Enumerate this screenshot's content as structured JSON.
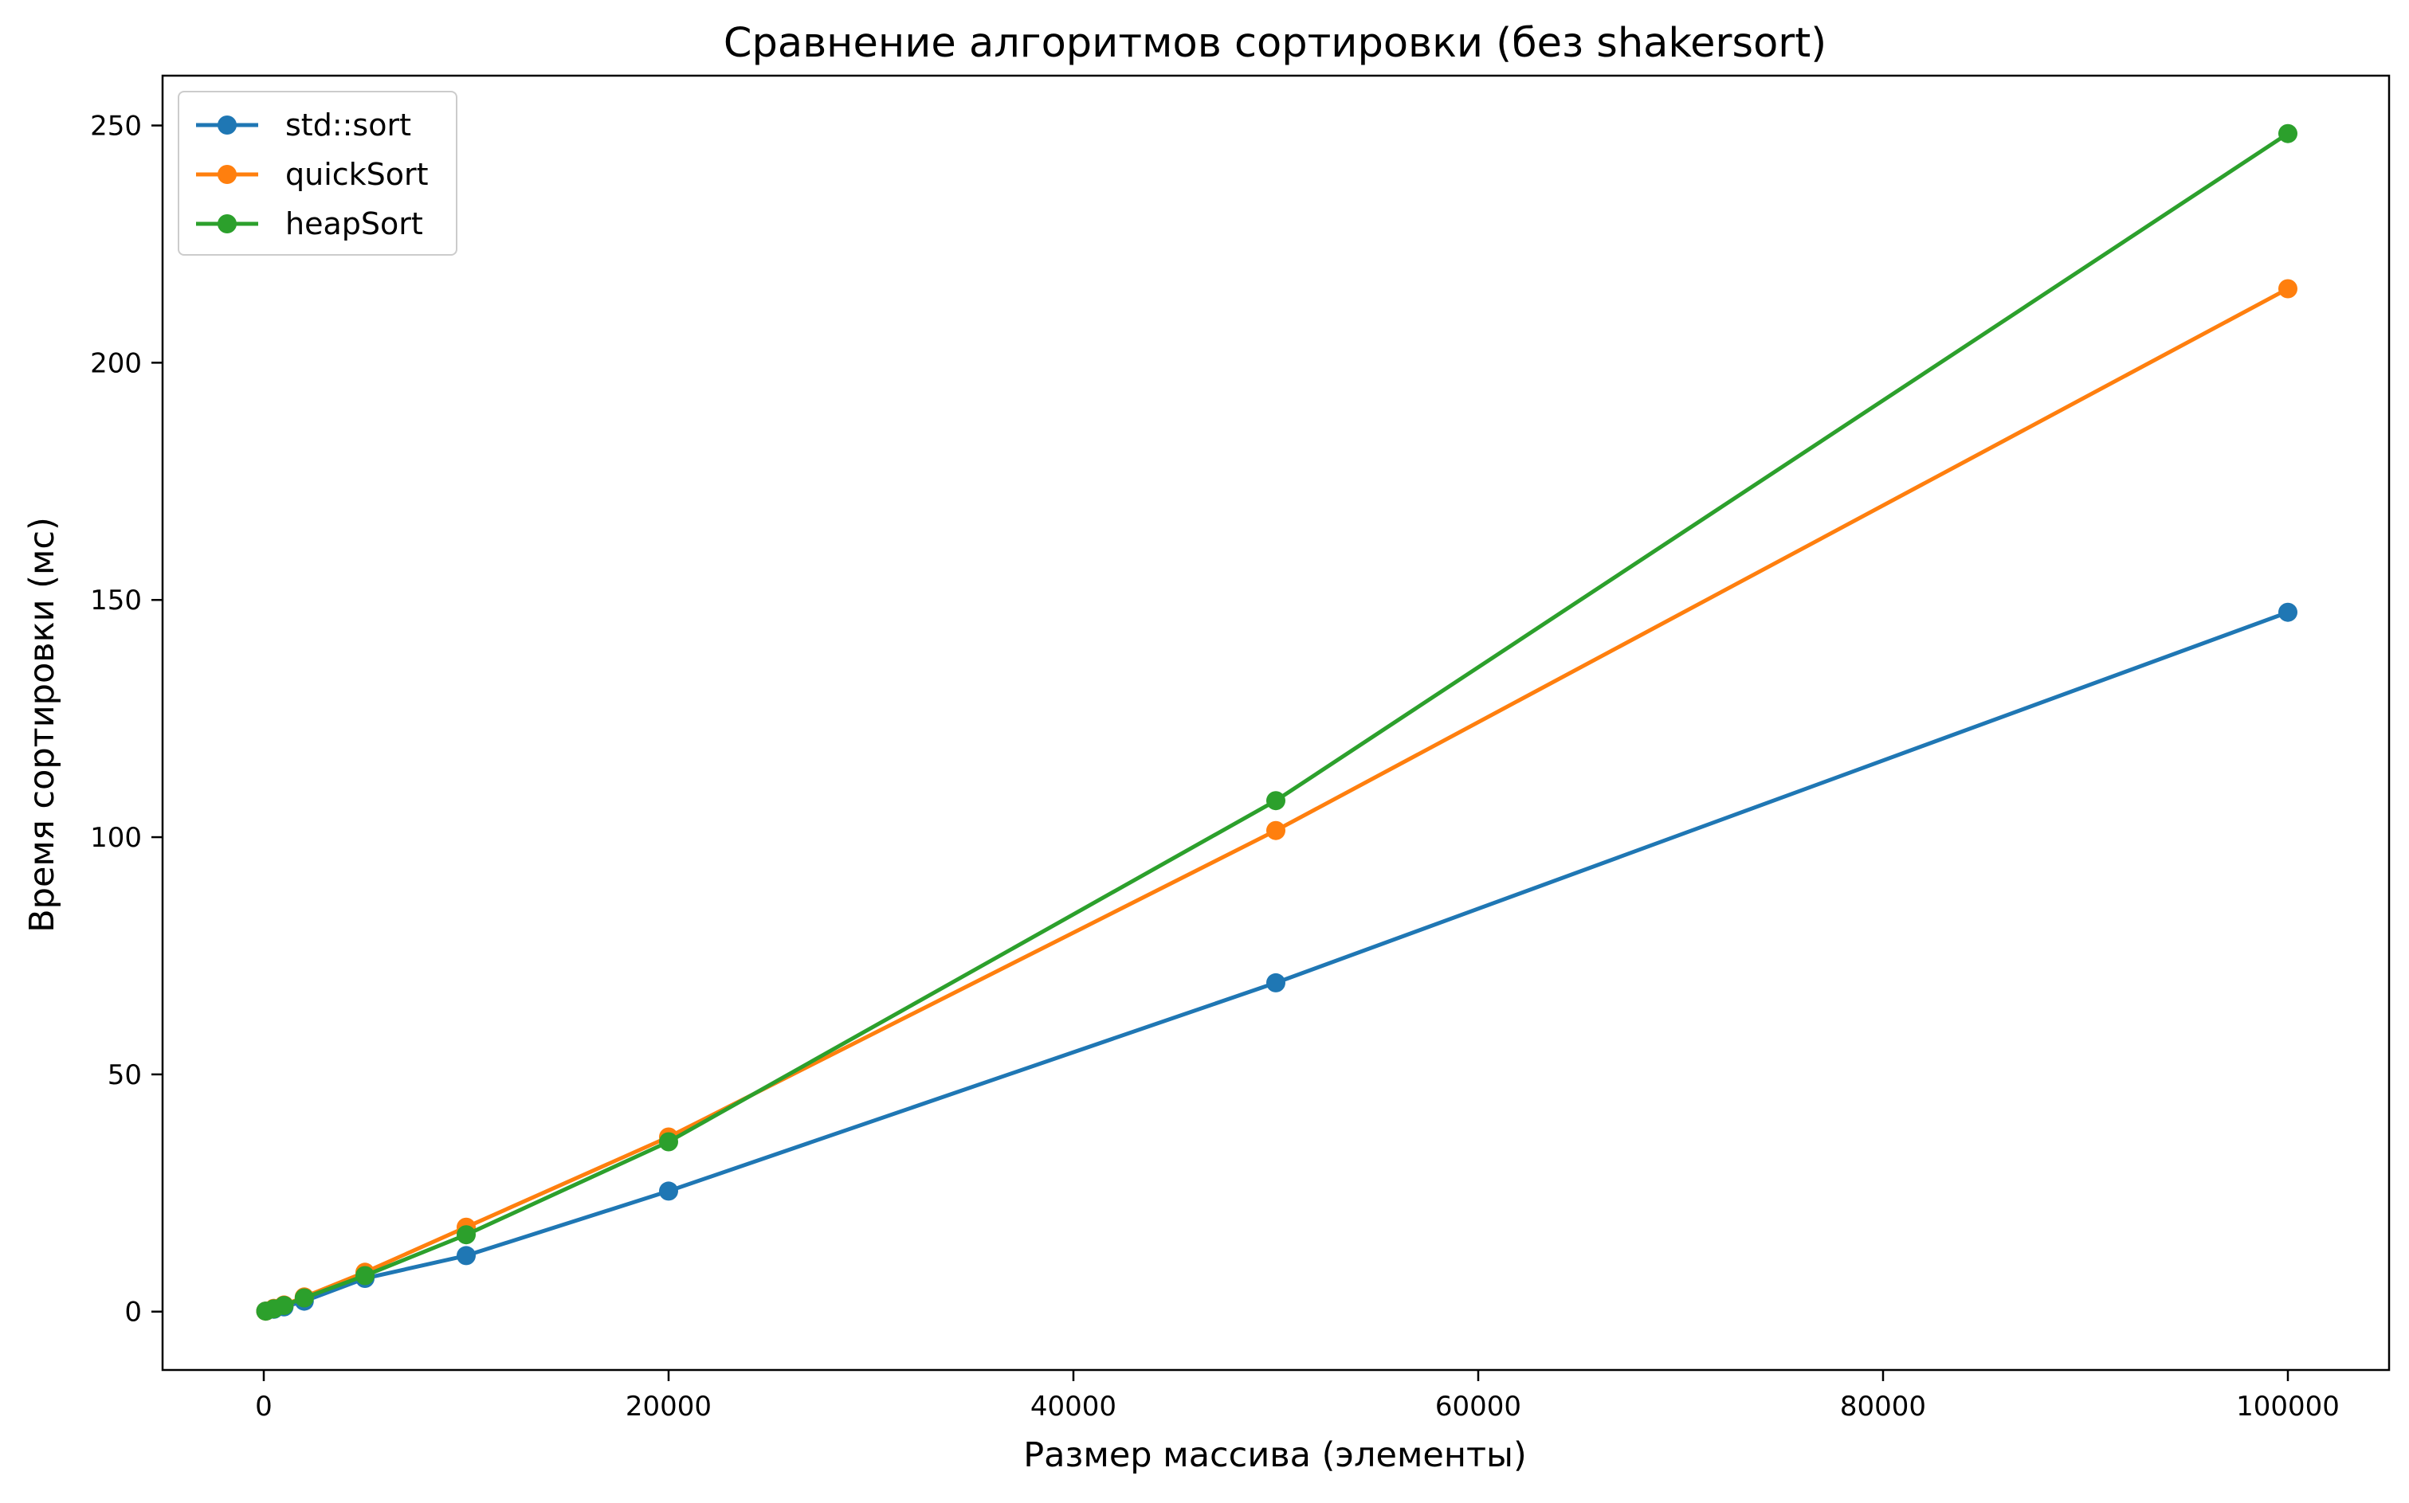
{
  "chart_data": {
    "type": "line",
    "title": "Сравнение алгоритмов сортировки (без shakersort)",
    "xlabel": "Размер массива (элементы)",
    "ylabel": "Время сортировки (мс)",
    "xlim": [
      -5000,
      105000
    ],
    "ylim": [
      -12.3,
      260.5
    ],
    "x_ticks": [
      0,
      20000,
      40000,
      60000,
      80000,
      100000
    ],
    "x_tick_labels": [
      "0",
      "20000",
      "40000",
      "60000",
      "80000",
      "100000"
    ],
    "y_ticks": [
      0,
      50,
      100,
      150,
      200,
      250
    ],
    "y_tick_labels": [
      "0",
      "50",
      "100",
      "150",
      "200",
      "250"
    ],
    "grid": false,
    "legend_position": "top-left",
    "x": [
      100,
      500,
      1000,
      2000,
      5000,
      10000,
      20000,
      50000,
      100000
    ],
    "series": [
      {
        "name": "std::sort",
        "color": "#1f77b4",
        "values": [
          0.1,
          0.5,
          1.0,
          2.2,
          7.0,
          11.8,
          25.4,
          69.3,
          147.4
        ]
      },
      {
        "name": "quickSort",
        "color": "#ff7f0e",
        "values": [
          0.1,
          0.7,
          1.4,
          3.1,
          8.3,
          17.8,
          36.8,
          101.4,
          215.6
        ]
      },
      {
        "name": "heapSort",
        "color": "#2ca02c",
        "values": [
          0.1,
          0.6,
          1.3,
          2.9,
          7.6,
          16.2,
          35.8,
          107.7,
          248.3
        ]
      }
    ]
  }
}
